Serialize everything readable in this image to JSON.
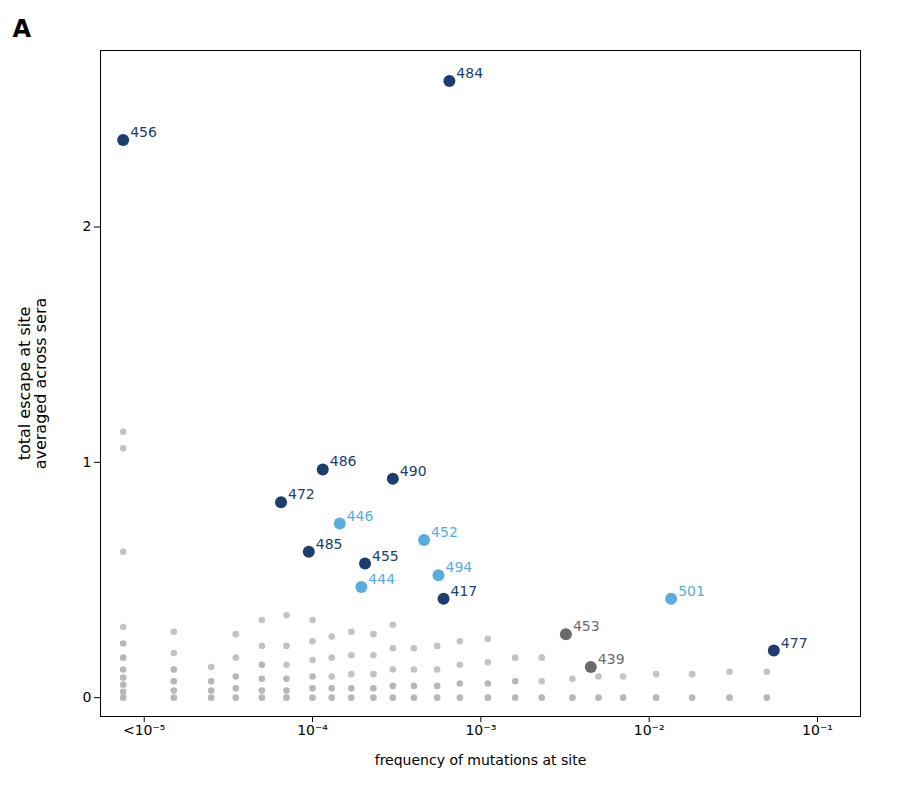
{
  "chart_data": {
    "type": "scatter",
    "title": "A",
    "x_label": "frequency of mutations at site",
    "y_label": "total escape at site\naveraged across sera",
    "log": "x",
    "grid": false,
    "xlim": [
      5.5e-06,
      0.18
    ],
    "xticks": [
      {
        "value": 1e-05,
        "label": "<10⁻⁵"
      },
      {
        "value": 0.0001,
        "label": "10⁻⁴"
      },
      {
        "value": 0.001,
        "label": "10⁻³"
      },
      {
        "value": 0.01,
        "label": "10⁻²"
      },
      {
        "value": 0.1,
        "label": "10⁻¹"
      }
    ],
    "ylim": [
      -0.08,
      2.75
    ],
    "yticks": [
      0,
      1,
      2
    ],
    "series": [
      {
        "x": [
          7.5e-06,
          7.5e-06,
          7.5e-06,
          7.5e-06,
          7.5e-06,
          7.5e-06,
          7.5e-06,
          7.5e-06,
          7.5e-06,
          7.5e-06,
          7.5e-06,
          1.5e-05,
          1.5e-05,
          1.5e-05,
          1.5e-05,
          1.5e-05,
          1.5e-05,
          2.5e-05,
          2.5e-05,
          2.5e-05,
          2.5e-05,
          3.5e-05,
          3.5e-05,
          3.5e-05,
          3.5e-05,
          3.5e-05,
          5e-05,
          5e-05,
          5e-05,
          5e-05,
          5e-05,
          5e-05,
          7e-05,
          7e-05,
          7e-05,
          7e-05,
          7e-05,
          7e-05,
          0.0001,
          0.0001,
          0.0001,
          0.0001,
          0.0001,
          0.0001,
          0.00013,
          0.00013,
          0.00013,
          0.00013,
          0.00013,
          0.00017,
          0.00017,
          0.00017,
          0.00017,
          0.00017,
          0.00023,
          0.00023,
          0.00023,
          0.00023,
          0.00023,
          0.0003,
          0.0003,
          0.0003,
          0.0003,
          0.0003,
          0.0004,
          0.0004,
          0.0004,
          0.0004,
          0.00055,
          0.00055,
          0.00055,
          0.00055,
          0.00075,
          0.00075,
          0.00075,
          0.00075,
          0.0011,
          0.0011,
          0.0011,
          0.0011,
          0.0016,
          0.0016,
          0.0016,
          0.0023,
          0.0023,
          0.0023,
          0.0035,
          0.0035,
          0.005,
          0.005,
          0.007,
          0.007,
          0.011,
          0.011,
          0.018,
          0.018,
          0.03,
          0.03,
          0.05,
          0.05
        ],
        "values": [
          0.0,
          0.025,
          0.055,
          0.085,
          0.12,
          0.17,
          0.23,
          0.3,
          0.62,
          1.06,
          1.13,
          0.0,
          0.03,
          0.07,
          0.12,
          0.19,
          0.28,
          0.0,
          0.03,
          0.07,
          0.13,
          0.0,
          0.04,
          0.09,
          0.17,
          0.27,
          0.0,
          0.03,
          0.08,
          0.14,
          0.22,
          0.33,
          0.0,
          0.03,
          0.08,
          0.14,
          0.22,
          0.35,
          0.0,
          0.04,
          0.09,
          0.16,
          0.24,
          0.33,
          0.0,
          0.04,
          0.09,
          0.17,
          0.26,
          0.0,
          0.04,
          0.1,
          0.18,
          0.28,
          0.0,
          0.04,
          0.1,
          0.18,
          0.27,
          0.0,
          0.05,
          0.12,
          0.21,
          0.31,
          0.0,
          0.05,
          0.12,
          0.21,
          0.0,
          0.05,
          0.12,
          0.22,
          0.0,
          0.06,
          0.14,
          0.24,
          0.0,
          0.06,
          0.15,
          0.25,
          0.0,
          0.07,
          0.17,
          0.0,
          0.07,
          0.17,
          0.0,
          0.08,
          0.0,
          0.09,
          0.0,
          0.09,
          0.0,
          0.1,
          0.0,
          0.1,
          0.0,
          0.11,
          0.0,
          0.11
        ],
        "colors": [
          "#aaaaaa",
          "#aaaaaa",
          "#aaaaaa",
          "#aaaaaa",
          "#aaaaaa",
          "#aaaaaa",
          "#aaaaaa",
          "#b8b8b8",
          "#b8b8b8",
          "#b8b8b8",
          "#b8b8b8",
          "#aaaaaa",
          "#aaaaaa",
          "#aaaaaa",
          "#aaaaaa",
          "#b8b8b8",
          "#b8b8b8",
          "#aaaaaa",
          "#aaaaaa",
          "#aaaaaa",
          "#b8b8b8",
          "#aaaaaa",
          "#aaaaaa",
          "#aaaaaa",
          "#b8b8b8",
          "#b8b8b8",
          "#aaaaaa",
          "#aaaaaa",
          "#aaaaaa",
          "#aaaaaa",
          "#b8b8b8",
          "#b8b8b8",
          "#aaaaaa",
          "#aaaaaa",
          "#aaaaaa",
          "#b8b8b8",
          "#b8b8b8",
          "#b8b8b8",
          "#aaaaaa",
          "#aaaaaa",
          "#aaaaaa",
          "#b8b8b8",
          "#b8b8b8",
          "#b8b8b8",
          "#aaaaaa",
          "#aaaaaa",
          "#b8b8b8",
          "#b8b8b8",
          "#b8b8b8",
          "#aaaaaa",
          "#aaaaaa",
          "#b8b8b8",
          "#b8b8b8",
          "#b8b8b8",
          "#aaaaaa",
          "#aaaaaa",
          "#b8b8b8",
          "#b8b8b8",
          "#b8b8b8",
          "#aaaaaa",
          "#aaaaaa",
          "#b8b8b8",
          "#b8b8b8",
          "#b8b8b8",
          "#aaaaaa",
          "#aaaaaa",
          "#b8b8b8",
          "#b8b8b8",
          "#aaaaaa",
          "#aaaaaa",
          "#b8b8b8",
          "#b8b8b8",
          "#aaaaaa",
          "#aaaaaa",
          "#b8b8b8",
          "#b8b8b8",
          "#aaaaaa",
          "#aaaaaa",
          "#b8b8b8",
          "#b8b8b8",
          "#aaaaaa",
          "#aaaaaa",
          "#b8b8b8",
          "#aaaaaa",
          "#b8b8b8",
          "#b8b8b8",
          "#aaaaaa",
          "#b8b8b8",
          "#aaaaaa",
          "#b8b8b8",
          "#aaaaaa",
          "#b8b8b8",
          "#aaaaaa",
          "#b8b8b8",
          "#aaaaaa",
          "#b8b8b8",
          "#aaaaaa",
          "#b8b8b8",
          "#aaaaaa",
          "#b8b8b8"
        ]
      },
      {
        "color": "#6b6b6b",
        "x": [
          0.0032,
          0.0045
        ],
        "values": [
          0.27,
          0.13
        ],
        "labels": [
          "453",
          "439"
        ]
      },
      {
        "color": "#5aacdc",
        "x": [
          0.000145,
          0.000195,
          0.00046,
          0.00056,
          0.0135
        ],
        "values": [
          0.74,
          0.47,
          0.67,
          0.52,
          0.42
        ],
        "labels": [
          "446",
          "444",
          "452",
          "494",
          "501"
        ]
      },
      {
        "color": "#1c3d6e",
        "x": [
          0.00065,
          7.5e-06,
          0.000115,
          6.5e-05,
          0.0003,
          9.5e-05,
          0.000205,
          0.0006,
          0.055
        ],
        "values": [
          2.62,
          2.37,
          0.97,
          0.83,
          0.93,
          0.62,
          0.57,
          0.42,
          0.2
        ],
        "labels": [
          "484",
          "456",
          "486",
          "472",
          "490",
          "485",
          "455",
          "417",
          "477"
        ]
      }
    ]
  }
}
